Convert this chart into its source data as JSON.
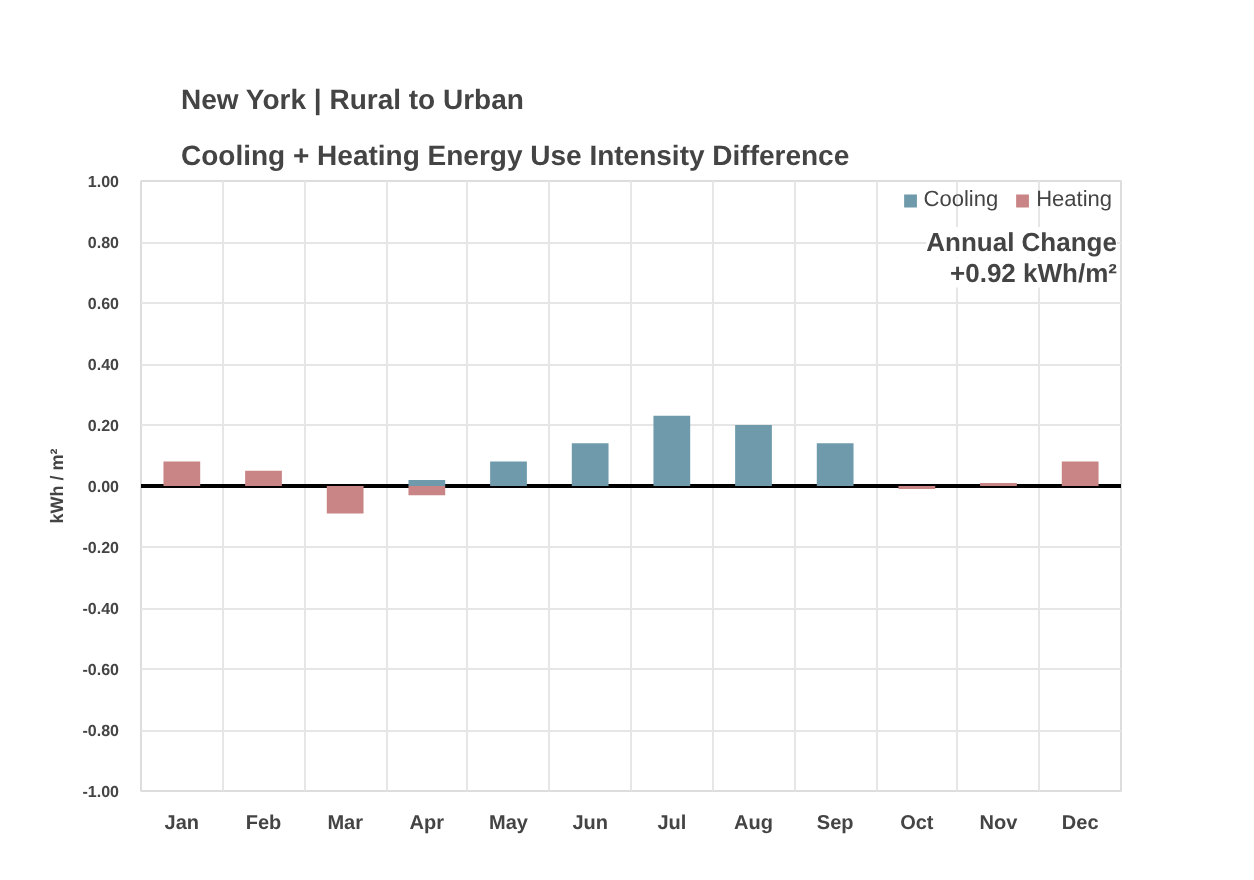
{
  "chart_data": {
    "type": "bar",
    "title": "New York | Rural to Urban",
    "subtitle": "Cooling + Heating Energy Use Intensity Difference",
    "ylabel": "kWh / m²",
    "categories": [
      "Jan",
      "Feb",
      "Mar",
      "Apr",
      "May",
      "Jun",
      "Jul",
      "Aug",
      "Sep",
      "Oct",
      "Nov",
      "Dec"
    ],
    "series": [
      {
        "name": "Cooling",
        "color": "#6f9aab",
        "values": [
          null,
          null,
          null,
          0.02,
          0.08,
          0.14,
          0.23,
          0.2,
          0.14,
          null,
          null,
          null
        ]
      },
      {
        "name": "Heating",
        "color": "#c98585",
        "values": [
          0.08,
          0.05,
          -0.09,
          -0.03,
          null,
          null,
          null,
          null,
          null,
          -0.01,
          0.01,
          0.08
        ]
      }
    ],
    "ylim": [
      -1,
      1
    ],
    "yticks": [
      {
        "value": -1,
        "label": "-1.00"
      },
      {
        "value": -0.8,
        "label": "-0.80"
      },
      {
        "value": -0.6,
        "label": "-0.60"
      },
      {
        "value": -0.4,
        "label": "-0.40"
      },
      {
        "value": -0.2,
        "label": "-0.20"
      },
      {
        "value": 0,
        "label": "0.00"
      },
      {
        "value": 0.2,
        "label": "0.20"
      },
      {
        "value": 0.4,
        "label": "0.40"
      },
      {
        "value": 0.6,
        "label": "0.60"
      },
      {
        "value": 0.8,
        "label": "0.80"
      },
      {
        "value": 1,
        "label": "1.00"
      }
    ],
    "ref_lines": [
      {
        "axis": "y",
        "value": 0,
        "color": "#000000"
      }
    ],
    "annotations": [
      "Annual Change",
      "+0.92 kWh/m²"
    ],
    "grid": true,
    "legend": "top right"
  }
}
